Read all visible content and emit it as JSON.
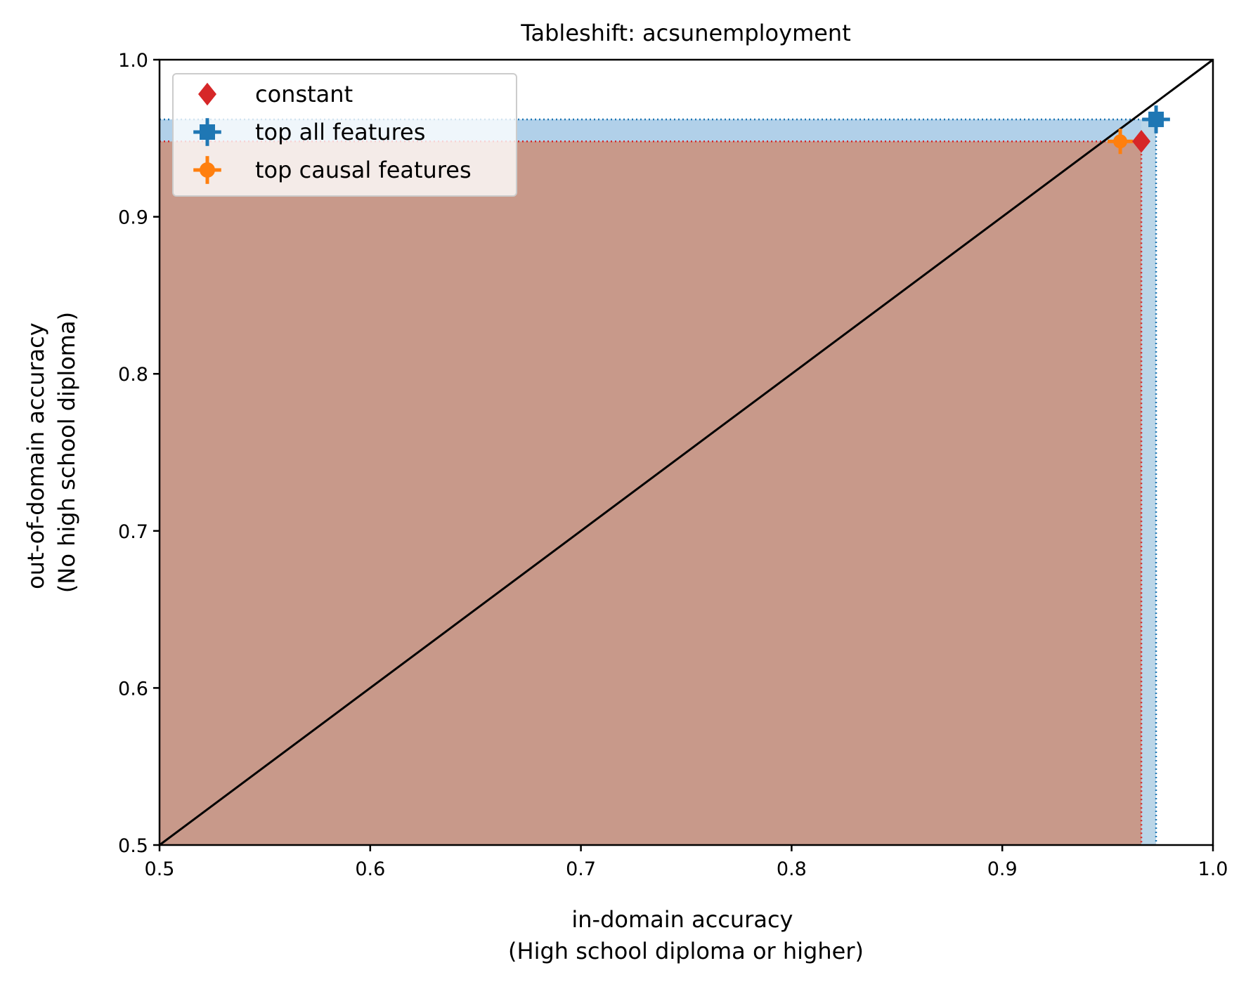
{
  "chart_data": {
    "type": "scatter",
    "title": "Tableshift: acsunemployment",
    "xlabel": [
      "in-domain accuracy",
      "(High school diploma or higher)"
    ],
    "ylabel": [
      "out-of-domain accuracy",
      "(No high school diploma)"
    ],
    "xlim": [
      0.5,
      1.0
    ],
    "ylim": [
      0.5,
      1.0
    ],
    "xticks": [
      "0.5",
      "0.6",
      "0.7",
      "0.8",
      "0.9",
      "1.0"
    ],
    "yticks": [
      "0.5",
      "0.6",
      "0.7",
      "0.8",
      "0.9",
      "1.0"
    ],
    "grid": false,
    "legend_position": "top-left",
    "diagonal": true,
    "series": [
      {
        "name": "constant",
        "marker": "diamond",
        "color": "#d62728",
        "x": 0.966,
        "y": 0.948
      },
      {
        "name": "top all features",
        "marker": "square",
        "color": "#1f77b4",
        "x": 0.973,
        "y": 0.962
      },
      {
        "name": "top causal features",
        "marker": "circle",
        "color": "#ff7f0e",
        "x": 0.966,
        "y": 0.948
      }
    ]
  }
}
